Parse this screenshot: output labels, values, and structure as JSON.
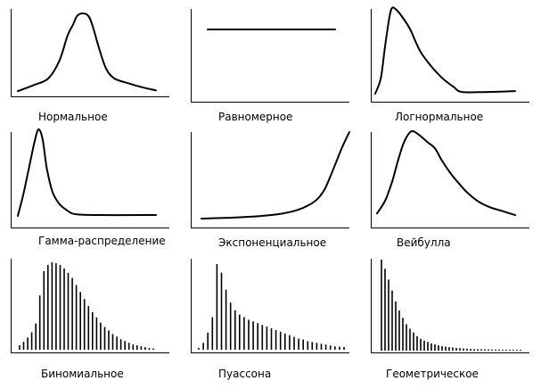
{
  "panels": [
    {
      "label": "Нормальное",
      "kind": "curve",
      "points": [
        [
          0,
          0.02
        ],
        [
          0.12,
          0.1
        ],
        [
          0.22,
          0.18
        ],
        [
          0.3,
          0.4
        ],
        [
          0.36,
          0.72
        ],
        [
          0.4,
          0.86
        ],
        [
          0.43,
          0.97
        ],
        [
          0.47,
          1.0
        ],
        [
          0.51,
          0.97
        ],
        [
          0.54,
          0.85
        ],
        [
          0.59,
          0.55
        ],
        [
          0.64,
          0.3
        ],
        [
          0.7,
          0.18
        ],
        [
          0.8,
          0.12
        ],
        [
          0.9,
          0.07
        ],
        [
          1.0,
          0.03
        ]
      ]
    },
    {
      "label": "Равномерное",
      "kind": "curve",
      "points": [
        [
          0,
          0.75
        ],
        [
          1,
          0.75
        ]
      ]
    },
    {
      "label": "Логнормальное",
      "kind": "curve",
      "points": [
        [
          0,
          0.0
        ],
        [
          0.04,
          0.18
        ],
        [
          0.07,
          0.55
        ],
        [
          0.1,
          0.88
        ],
        [
          0.12,
          1.0
        ],
        [
          0.15,
          0.98
        ],
        [
          0.2,
          0.88
        ],
        [
          0.25,
          0.75
        ],
        [
          0.32,
          0.5
        ],
        [
          0.4,
          0.32
        ],
        [
          0.48,
          0.18
        ],
        [
          0.56,
          0.08
        ],
        [
          0.62,
          0.02
        ],
        [
          0.8,
          0.02
        ],
        [
          1.0,
          0.03
        ]
      ]
    },
    {
      "label": "Гамма-распределение",
      "kind": "curve",
      "points": [
        [
          0,
          0.0
        ],
        [
          0.04,
          0.25
        ],
        [
          0.08,
          0.55
        ],
        [
          0.12,
          0.85
        ],
        [
          0.15,
          1.0
        ],
        [
          0.18,
          0.88
        ],
        [
          0.21,
          0.55
        ],
        [
          0.25,
          0.28
        ],
        [
          0.3,
          0.14
        ],
        [
          0.36,
          0.06
        ],
        [
          0.42,
          0.02
        ],
        [
          0.6,
          0.01
        ],
        [
          1.0,
          0.01
        ]
      ]
    },
    {
      "label": "Экспоненциальное",
      "kind": "curve",
      "points": [
        [
          0,
          0.0
        ],
        [
          0.2,
          0.01
        ],
        [
          0.4,
          0.03
        ],
        [
          0.55,
          0.06
        ],
        [
          0.65,
          0.1
        ],
        [
          0.72,
          0.15
        ],
        [
          0.78,
          0.22
        ],
        [
          0.83,
          0.33
        ],
        [
          0.87,
          0.48
        ],
        [
          0.91,
          0.65
        ],
        [
          0.95,
          0.82
        ],
        [
          1.0,
          1.0
        ]
      ]
    },
    {
      "label": "Вейбулла",
      "kind": "curve",
      "points": [
        [
          0,
          0.05
        ],
        [
          0.06,
          0.2
        ],
        [
          0.11,
          0.42
        ],
        [
          0.15,
          0.65
        ],
        [
          0.19,
          0.85
        ],
        [
          0.23,
          0.97
        ],
        [
          0.26,
          1.0
        ],
        [
          0.31,
          0.95
        ],
        [
          0.36,
          0.88
        ],
        [
          0.42,
          0.8
        ],
        [
          0.47,
          0.66
        ],
        [
          0.53,
          0.52
        ],
        [
          0.59,
          0.4
        ],
        [
          0.66,
          0.28
        ],
        [
          0.74,
          0.18
        ],
        [
          0.82,
          0.12
        ],
        [
          0.9,
          0.08
        ],
        [
          1.0,
          0.03
        ]
      ]
    },
    {
      "label": "Биномиальное",
      "kind": "bars",
      "values": [
        0.05,
        0.09,
        0.14,
        0.2,
        0.3,
        0.62,
        0.9,
        0.97,
        1.0,
        0.99,
        0.97,
        0.93,
        0.88,
        0.82,
        0.74,
        0.66,
        0.58,
        0.5,
        0.43,
        0.37,
        0.31,
        0.26,
        0.22,
        0.18,
        0.15,
        0.12,
        0.1,
        0.08,
        0.06,
        0.05,
        0.04,
        0.03,
        0.02,
        0.015
      ]
    },
    {
      "label": "Пуассона",
      "kind": "bars",
      "values": [
        0.02,
        0.08,
        0.2,
        0.38,
        1.0,
        0.9,
        0.7,
        0.55,
        0.46,
        0.41,
        0.38,
        0.35,
        0.33,
        0.31,
        0.29,
        0.27,
        0.25,
        0.23,
        0.21,
        0.19,
        0.17,
        0.15,
        0.13,
        0.12,
        0.1,
        0.09,
        0.08,
        0.07,
        0.06,
        0.05,
        0.04,
        0.035,
        0.03
      ]
    },
    {
      "label": "Геометрическое",
      "kind": "bars",
      "values": [
        1.0,
        0.9,
        0.78,
        0.66,
        0.54,
        0.44,
        0.36,
        0.29,
        0.24,
        0.2,
        0.16,
        0.13,
        0.11,
        0.095,
        0.08,
        0.068,
        0.058,
        0.05,
        0.044,
        0.038,
        0.034,
        0.03,
        0.027,
        0.024,
        0.022,
        0.02,
        0.018,
        0.017,
        0.016,
        0.015,
        0.014,
        0.013,
        0.012,
        0.012,
        0.011,
        0.011,
        0.01,
        0.01,
        0.01,
        0.01
      ]
    }
  ]
}
